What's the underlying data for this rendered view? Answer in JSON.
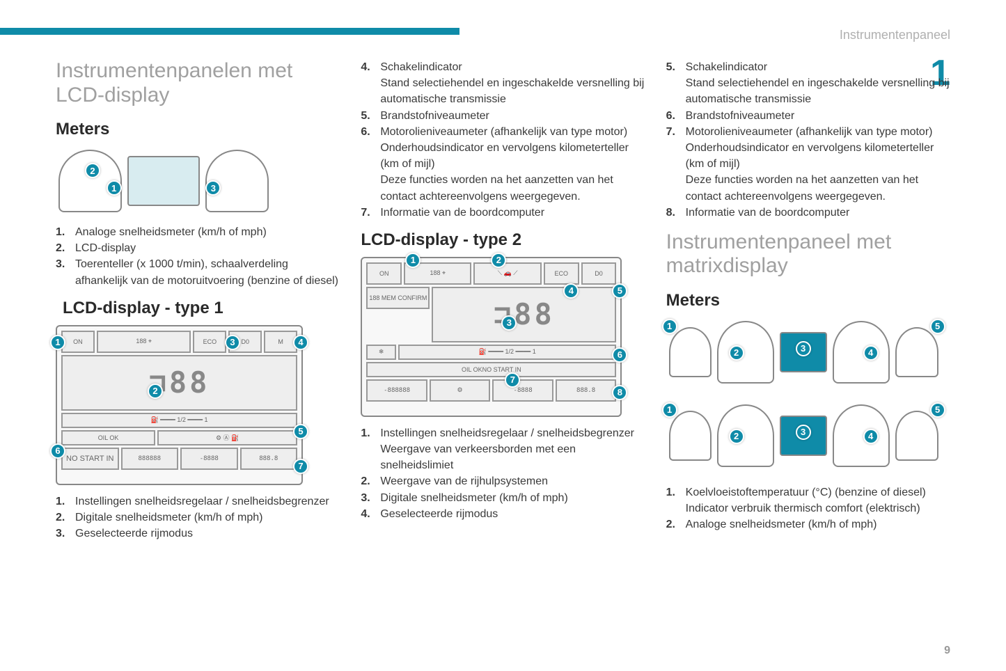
{
  "header": {
    "section_name": "Instrumentenpaneel",
    "section_number": "1",
    "page_number": "9"
  },
  "col1": {
    "title": "Instrumentenpanelen met LCD-display",
    "meters_heading": "Meters",
    "meters_items": [
      {
        "n": "1.",
        "t": "Analoge snelheidsmeter (km/h of mph)"
      },
      {
        "n": "2.",
        "t": "LCD-display"
      },
      {
        "n": "3.",
        "t": "Toerenteller (x 1000 t/min), schaalverdeling afhankelijk van de motoruitvoering (benzine of diesel)"
      }
    ],
    "lcd1_heading": "LCD-display - type 1",
    "lcd1_items": [
      {
        "n": "1.",
        "t": "Instellingen snelheidsregelaar / snelheidsbegrenzer"
      },
      {
        "n": "2.",
        "t": "Digitale snelheidsmeter (km/h of mph)"
      },
      {
        "n": "3.",
        "t": "Geselecteerde rijmodus"
      }
    ]
  },
  "col2": {
    "top_items": [
      {
        "n": "4.",
        "t": "Schakelindicator\nStand selectiehendel en ingeschakelde versnelling bij automatische transmissie"
      },
      {
        "n": "5.",
        "t": "Brandstofniveaumeter"
      },
      {
        "n": "6.",
        "t": "Motorolieniveaumeter (afhankelijk van type motor)\nOnderhoudsindicator en vervolgens kilometerteller (km of mijl)\nDeze functies worden na het aanzetten van het contact achtereenvolgens weergegeven."
      },
      {
        "n": "7.",
        "t": "Informatie van de boordcomputer"
      }
    ],
    "lcd2_heading": "LCD-display - type 2",
    "lcd2_items": [
      {
        "n": "1.",
        "t": "Instellingen snelheidsregelaar / snelheidsbegrenzer\nWeergave van verkeersborden met een snelheidslimiet"
      },
      {
        "n": "2.",
        "t": "Weergave van de rijhulpsystemen"
      },
      {
        "n": "3.",
        "t": "Digitale snelheidsmeter (km/h of mph)"
      },
      {
        "n": "4.",
        "t": "Geselecteerde rijmodus"
      }
    ]
  },
  "col3": {
    "top_items": [
      {
        "n": "5.",
        "t": "Schakelindicator\nStand selectiehendel en ingeschakelde versnelling bij automatische transmissie"
      },
      {
        "n": "6.",
        "t": "Brandstofniveaumeter"
      },
      {
        "n": "7.",
        "t": "Motorolieniveaumeter (afhankelijk van type motor)\nOnderhoudsindicator en vervolgens kilometerteller (km of mijl)\nDeze functies worden na het aanzetten van het contact achtereenvolgens weergegeven."
      },
      {
        "n": "8.",
        "t": "Informatie van de boordcomputer"
      }
    ],
    "matrix_title": "Instrumentenpaneel met matrixdisplay",
    "meters_heading": "Meters",
    "matrix_items": [
      {
        "n": "1.",
        "t": "Koelvloeistoftemperatuur (°C) (benzine of diesel)\nIndicator verbruik thermisch comfort (elektrisch)"
      },
      {
        "n": "2.",
        "t": "Analoge snelheidsmeter (km/h of mph)"
      }
    ]
  },
  "colors": {
    "accent": "#0f8ba8",
    "heading_grey": "#a0a0a0",
    "text": "#3a3a3a"
  }
}
